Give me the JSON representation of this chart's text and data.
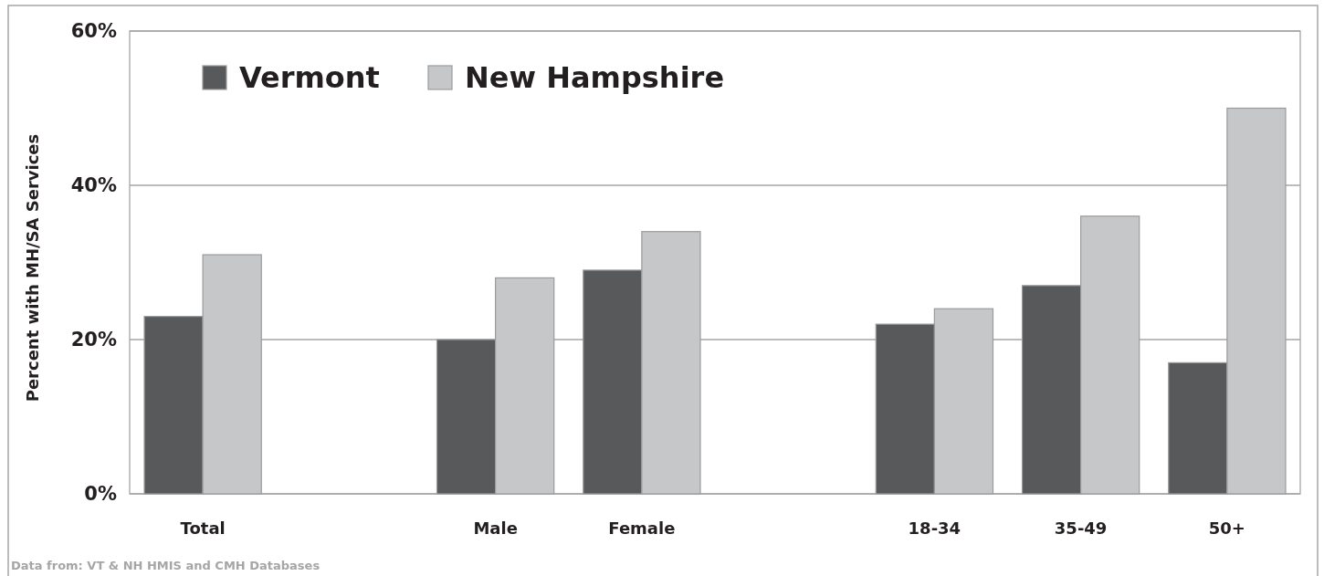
{
  "chart_data": {
    "type": "bar",
    "ylabel": "Percent with MH/SA Services",
    "categories": [
      "Total",
      null,
      "Male",
      "Female",
      null,
      "18-34",
      "35-49",
      "50+"
    ],
    "series": [
      {
        "name": "Vermont",
        "color": "#58595b",
        "values": [
          23,
          null,
          20,
          29,
          null,
          22,
          27,
          17
        ]
      },
      {
        "name": "New Hampshire",
        "color": "#c6c7c9",
        "values": [
          31,
          null,
          28,
          34,
          null,
          24,
          36,
          50
        ]
      }
    ],
    "ylim": [
      0,
      60
    ],
    "yticks": [
      {
        "value": 0,
        "label": "0%"
      },
      {
        "value": 20,
        "label": "20%"
      },
      {
        "value": 40,
        "label": "40%"
      },
      {
        "value": 60,
        "label": "60%"
      }
    ],
    "grid": "y",
    "legend": "top left",
    "annotations": [
      "Data from: VT & NH HMIS and CMH Databases"
    ]
  }
}
